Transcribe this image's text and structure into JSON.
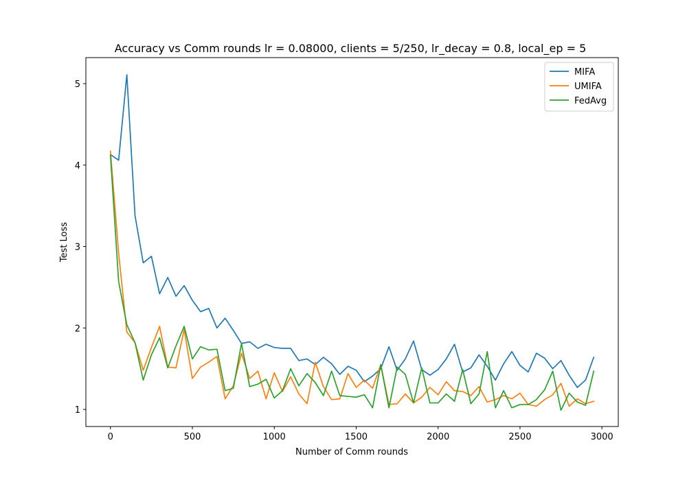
{
  "chart_data": {
    "type": "line",
    "title": "Accuracy vs Comm rounds lr = 0.08000, clients = 5/250, lr_decay = 0.8, local_ep = 5",
    "xlabel": "Number of Comm rounds",
    "ylabel": "Test Loss",
    "xlim": [
      -150,
      3100
    ],
    "ylim": [
      0.79,
      5.32
    ],
    "xticks": [
      0,
      500,
      1000,
      1500,
      2000,
      2500,
      3000
    ],
    "yticks": [
      1,
      2,
      3,
      4,
      5
    ],
    "grid": false,
    "legend_position": "top-right",
    "x": [
      0,
      50,
      100,
      150,
      200,
      250,
      300,
      350,
      400,
      450,
      500,
      550,
      600,
      650,
      700,
      750,
      800,
      850,
      900,
      950,
      1000,
      1050,
      1100,
      1150,
      1200,
      1250,
      1300,
      1350,
      1400,
      1450,
      1500,
      1550,
      1600,
      1650,
      1700,
      1750,
      1800,
      1850,
      1900,
      1950,
      2000,
      2050,
      2100,
      2150,
      2200,
      2250,
      2300,
      2350,
      2400,
      2450,
      2500,
      2550,
      2600,
      2650,
      2700,
      2750,
      2800,
      2850,
      2900,
      2950
    ],
    "series": [
      {
        "name": "MIFA",
        "color": "#1f77b4",
        "values": [
          4.13,
          4.06,
          5.11,
          3.38,
          2.8,
          2.88,
          2.42,
          2.62,
          2.39,
          2.52,
          2.34,
          2.2,
          2.24,
          2.0,
          2.12,
          1.97,
          1.81,
          1.83,
          1.75,
          1.8,
          1.76,
          1.75,
          1.75,
          1.6,
          1.62,
          1.55,
          1.64,
          1.56,
          1.43,
          1.53,
          1.48,
          1.34,
          1.41,
          1.5,
          1.77,
          1.48,
          1.62,
          1.84,
          1.49,
          1.42,
          1.49,
          1.62,
          1.8,
          1.46,
          1.51,
          1.67,
          1.53,
          1.36,
          1.56,
          1.71,
          1.54,
          1.46,
          1.69,
          1.63,
          1.5,
          1.6,
          1.42,
          1.27,
          1.36,
          1.64
        ]
      },
      {
        "name": "UMIFA",
        "color": "#ff7f0e",
        "values": [
          4.17,
          2.92,
          1.95,
          1.82,
          1.48,
          1.76,
          2.02,
          1.52,
          1.51,
          1.98,
          1.38,
          1.52,
          1.58,
          1.65,
          1.13,
          1.29,
          1.69,
          1.38,
          1.47,
          1.13,
          1.45,
          1.22,
          1.4,
          1.19,
          1.07,
          1.58,
          1.28,
          1.12,
          1.13,
          1.44,
          1.27,
          1.36,
          1.26,
          1.55,
          1.06,
          1.07,
          1.19,
          1.08,
          1.15,
          1.27,
          1.18,
          1.34,
          1.23,
          1.22,
          1.17,
          1.28,
          1.09,
          1.12,
          1.17,
          1.13,
          1.2,
          1.06,
          1.04,
          1.12,
          1.18,
          1.32,
          1.04,
          1.13,
          1.07,
          1.1
        ]
      },
      {
        "name": "FedAvg",
        "color": "#2ca02c",
        "values": [
          4.12,
          2.57,
          2.04,
          1.82,
          1.36,
          1.67,
          1.88,
          1.51,
          1.78,
          2.02,
          1.62,
          1.77,
          1.73,
          1.74,
          1.23,
          1.26,
          1.81,
          1.28,
          1.31,
          1.37,
          1.14,
          1.23,
          1.5,
          1.29,
          1.44,
          1.33,
          1.17,
          1.47,
          1.17,
          1.16,
          1.15,
          1.18,
          1.02,
          1.55,
          1.02,
          1.52,
          1.43,
          1.08,
          1.51,
          1.08,
          1.08,
          1.19,
          1.1,
          1.49,
          1.07,
          1.19,
          1.71,
          1.02,
          1.23,
          1.02,
          1.06,
          1.06,
          1.12,
          1.24,
          1.47,
          0.99,
          1.2,
          1.09,
          1.05,
          1.47
        ]
      }
    ]
  }
}
